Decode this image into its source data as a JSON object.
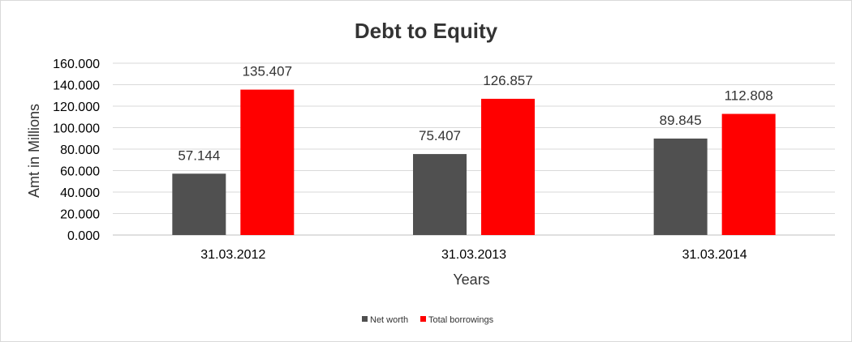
{
  "chart_data": {
    "type": "bar",
    "title": "Debt to Equity",
    "xlabel": "Years",
    "ylabel": "Amt in Millions",
    "categories": [
      "31.03.2012",
      "31.03.2013",
      "31.03.2014"
    ],
    "series": [
      {
        "name": "Net worth",
        "values": [
          57.144,
          75.407,
          89.845
        ],
        "color": "#505050",
        "labels": [
          "57.144",
          "75.407",
          "89.845"
        ]
      },
      {
        "name": "Total borrowings",
        "values": [
          135.407,
          126.857,
          112.808
        ],
        "color": "#ff0000",
        "labels": [
          "135.407",
          "126.857",
          "112.808"
        ]
      }
    ],
    "ylim": [
      0,
      160
    ],
    "yticks": [
      "0.000",
      "20.000",
      "40.000",
      "60.000",
      "80.000",
      "100.000",
      "120.000",
      "140.000",
      "160.000"
    ],
    "grid": true,
    "legend_position": "bottom"
  }
}
